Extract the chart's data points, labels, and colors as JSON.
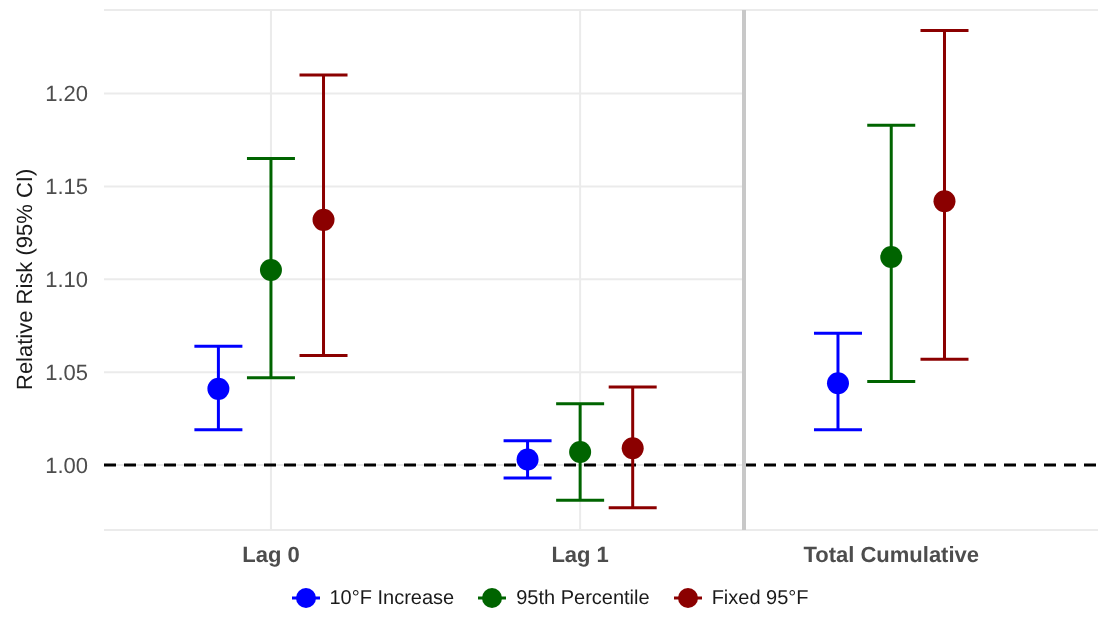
{
  "chart_data": [
    {
      "type": "scatter",
      "ylabel": "Relative Risk (95% CI)",
      "categories": [
        "Lag 0",
        "Lag 1"
      ],
      "series": [
        {
          "name": "10°F Increase",
          "color": "#0000ff",
          "values": [
            1.041,
            1.003
          ],
          "errors": [
            [
              1.019,
              1.064
            ],
            [
              0.993,
              1.013
            ]
          ]
        },
        {
          "name": "95th Percentile",
          "color": "#006400",
          "values": [
            1.105,
            1.007
          ],
          "errors": [
            [
              1.047,
              1.165
            ],
            [
              0.981,
              1.033
            ]
          ]
        },
        {
          "name": "Fixed 95°F",
          "color": "#8b0000",
          "values": [
            1.132,
            1.009
          ],
          "errors": [
            [
              1.059,
              1.21
            ],
            [
              0.977,
              1.042
            ]
          ]
        }
      ],
      "ylim": [
        0.965,
        1.245
      ],
      "yticks": [
        {
          "value": 1.0,
          "label": "1.00"
        },
        {
          "value": 1.05,
          "label": "1.05"
        },
        {
          "value": 1.1,
          "label": "1.10"
        },
        {
          "value": 1.15,
          "label": "1.15"
        },
        {
          "value": 1.2,
          "label": "1.20"
        }
      ],
      "ref_lines": [
        {
          "axis": "y",
          "value": 1.0,
          "color": "#000000",
          "line_style": "dashed"
        }
      ],
      "grid": true,
      "legend": "bottom",
      "marker": "circle"
    },
    {
      "type": "scatter",
      "categories": [
        "Total Cumulative"
      ],
      "series": [
        {
          "color": "#0000ff",
          "values": [
            1.044
          ],
          "errors": [
            [
              1.019,
              1.071
            ]
          ]
        },
        {
          "color": "#006400",
          "values": [
            1.112
          ],
          "errors": [
            [
              1.045,
              1.183
            ]
          ]
        },
        {
          "color": "#8b0000",
          "values": [
            1.142
          ],
          "errors": [
            [
              1.057,
              1.234
            ]
          ]
        }
      ],
      "ylim": [
        0.965,
        1.245
      ],
      "yticks": [
        {
          "value": 1.0,
          "label": null
        },
        {
          "value": 1.05,
          "label": null
        },
        {
          "value": 1.1,
          "label": null
        },
        {
          "value": 1.15,
          "label": null
        },
        {
          "value": 1.2,
          "label": null
        }
      ],
      "ref_lines": [
        {
          "axis": "y",
          "value": 1.0,
          "color": "#000000",
          "line_style": "dashed"
        }
      ],
      "grid": "y",
      "tick_labels": "x",
      "marker": "circle"
    }
  ]
}
